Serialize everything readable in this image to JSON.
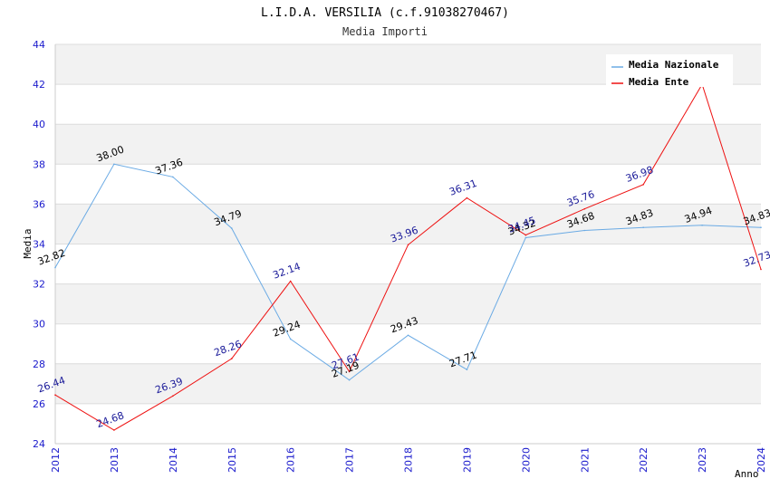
{
  "chart_data": {
    "type": "line",
    "title": "L.I.D.A. VERSILIA (c.f.91038270467)",
    "subtitle": "Media Importi",
    "xlabel": "Anno",
    "ylabel": "Media",
    "ylim": [
      24,
      44
    ],
    "yticks": [
      "24",
      "26",
      "28",
      "30",
      "32",
      "34",
      "36",
      "38",
      "40",
      "42",
      "44"
    ],
    "categories": [
      "2012",
      "2013",
      "2014",
      "2015",
      "2016",
      "2017",
      "2018",
      "2019",
      "2020",
      "2021",
      "2022",
      "2023",
      "2024"
    ],
    "legend_position": "top-right",
    "series": [
      {
        "name": "Media Nazionale",
        "color": "#6aaae4",
        "label_color": "#000000",
        "values": [
          32.82,
          38.0,
          37.36,
          34.79,
          29.24,
          27.19,
          29.43,
          27.71,
          34.32,
          34.68,
          34.83,
          34.94,
          34.83
        ],
        "labels": [
          "32.82",
          "38.00",
          "37.36",
          "34.79",
          "29.24",
          "27.19",
          "29.43",
          "27.71",
          "34.32",
          "34.68",
          "34.83",
          "34.94",
          "34.83"
        ]
      },
      {
        "name": "Media Ente",
        "color": "#ee1111",
        "label_color": "#1a1a99",
        "values": [
          26.44,
          24.68,
          26.39,
          28.26,
          32.14,
          27.61,
          33.96,
          36.31,
          34.45,
          35.76,
          36.98,
          42.0,
          32.73
        ],
        "labels": [
          "26.44",
          "24.68",
          "26.39",
          "28.26",
          "32.14",
          "27.61",
          "33.96",
          "36.31",
          "34.45",
          "35.76",
          "36.98",
          "",
          "32.73"
        ]
      }
    ]
  }
}
